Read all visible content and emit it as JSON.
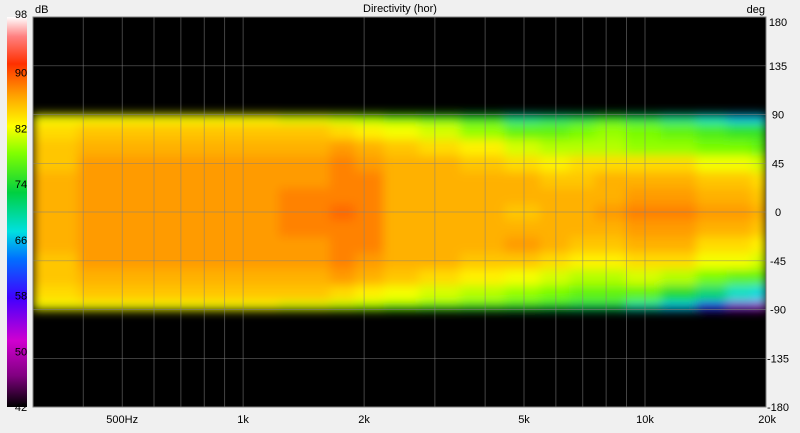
{
  "chart_data": {
    "type": "heatmap",
    "title": "Directivity (hor)",
    "colorbar_unit": "dB",
    "y_unit": "deg",
    "x_scale": "log",
    "xlim": [
      300,
      20000
    ],
    "ylim": [
      -180,
      180
    ],
    "zlim": [
      42,
      98
    ],
    "grid": true,
    "x_ticks": [
      {
        "value": 500,
        "label": "500Hz"
      },
      {
        "value": 1000,
        "label": "1k"
      },
      {
        "value": 2000,
        "label": "2k"
      },
      {
        "value": 5000,
        "label": "5k"
      },
      {
        "value": 10000,
        "label": "10k"
      },
      {
        "value": 20000,
        "label": "20k"
      }
    ],
    "y_ticks": [
      180,
      135,
      90,
      45,
      0,
      -45,
      -90,
      -135,
      -180
    ],
    "colorbar_ticks": [
      98,
      90,
      82,
      74,
      66,
      58,
      50,
      42
    ],
    "angles": [
      -90,
      -75,
      -60,
      -45,
      -30,
      -15,
      0,
      15,
      30,
      45,
      60,
      75,
      90
    ],
    "frequencies": [
      300,
      500,
      700,
      1000,
      1500,
      1800,
      2000,
      2500,
      3000,
      4000,
      5000,
      6000,
      7000,
      8000,
      10000,
      12000,
      15000,
      17000,
      20000
    ],
    "z": [
      [
        82,
        82,
        82,
        82,
        81,
        80,
        79,
        77,
        76,
        75,
        74,
        73,
        72,
        72,
        69,
        66,
        59,
        54,
        53
      ],
      [
        84,
        85,
        85,
        85,
        85,
        84,
        83,
        82,
        81,
        80,
        79,
        78,
        77,
        77,
        77,
        74,
        71,
        68,
        67
      ],
      [
        85,
        86,
        86,
        86,
        86,
        87,
        86,
        85,
        84,
        83,
        82,
        81,
        80,
        80,
        81,
        80,
        78,
        77,
        77
      ],
      [
        85,
        87,
        87,
        87,
        87,
        88,
        87,
        86,
        86,
        85,
        85,
        84,
        83,
        83,
        84,
        84,
        82,
        82,
        81
      ],
      [
        86,
        87,
        87,
        87,
        87,
        88,
        88,
        86,
        86,
        86,
        87,
        86,
        85,
        85,
        86,
        86,
        84,
        84,
        83
      ],
      [
        86,
        87,
        87,
        87,
        88,
        88,
        88,
        86,
        86,
        86,
        86,
        86,
        86,
        86,
        87,
        87,
        86,
        86,
        85
      ],
      [
        86,
        87,
        87,
        87,
        88,
        89,
        88,
        86,
        86,
        86,
        85,
        86,
        86,
        87,
        88,
        88,
        87,
        87,
        86
      ],
      [
        86,
        87,
        87,
        87,
        88,
        88,
        88,
        86,
        86,
        86,
        86,
        86,
        86,
        86,
        87,
        87,
        86,
        86,
        85
      ],
      [
        86,
        87,
        87,
        87,
        87,
        88,
        88,
        86,
        86,
        86,
        86,
        85,
        85,
        86,
        86,
        86,
        85,
        85,
        84
      ],
      [
        85,
        87,
        87,
        87,
        87,
        88,
        87,
        86,
        86,
        85,
        84,
        83,
        84,
        84,
        84,
        84,
        82,
        82,
        81
      ],
      [
        85,
        86,
        86,
        86,
        86,
        87,
        86,
        85,
        84,
        83,
        81,
        80,
        80,
        80,
        79,
        79,
        78,
        78,
        77
      ],
      [
        84,
        85,
        85,
        85,
        85,
        84,
        83,
        82,
        81,
        79,
        77,
        77,
        78,
        79,
        78,
        77,
        76,
        75,
        75
      ],
      [
        82,
        82,
        82,
        82,
        81,
        80,
        79,
        77,
        76,
        74,
        70,
        71,
        72,
        74,
        72,
        70,
        68,
        66,
        66
      ]
    ]
  }
}
